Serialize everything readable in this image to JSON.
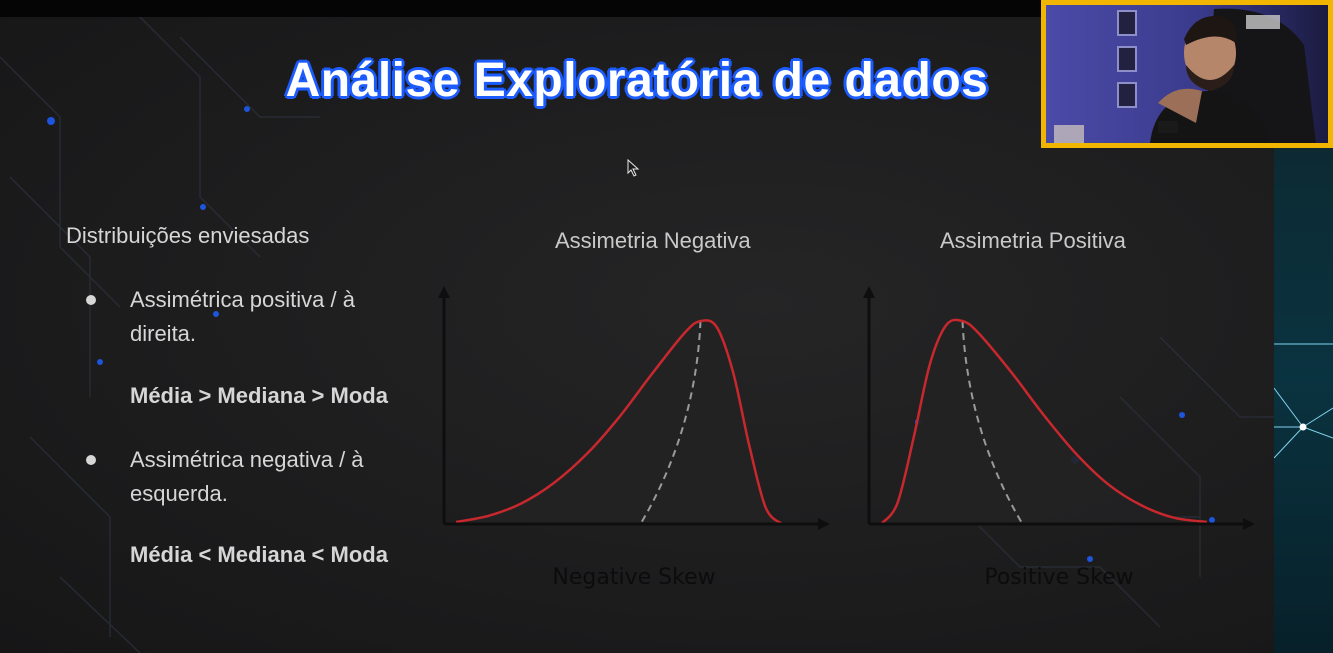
{
  "slide": {
    "title": "Análise Exploratória de dados",
    "section_heading": "Distribuições enviesadas",
    "bullets": [
      {
        "text_line1": "Assimétrica positiva / à",
        "text_line2": "direita.",
        "relation": "Média > Mediana > Moda"
      },
      {
        "text_line1": "Assimétrica negativa / à",
        "text_line2": "esquerda.",
        "relation": "Média < Mediana < Moda"
      }
    ]
  },
  "chart_data": [
    {
      "type": "line",
      "title": "Assimetria Negativa",
      "xlabel": "Negative Skew",
      "ylabel": "",
      "x": [
        0,
        0.1,
        0.2,
        0.3,
        0.4,
        0.5,
        0.6,
        0.7,
        0.75,
        0.8,
        0.85,
        0.9,
        0.95,
        1.0
      ],
      "series": [
        {
          "values": [
            0.01,
            0.04,
            0.1,
            0.2,
            0.34,
            0.52,
            0.73,
            0.93,
            0.99,
            0.96,
            0.74,
            0.38,
            0.08,
            0.0
          ]
        }
      ],
      "colors": {
        "curve": "#c8282d",
        "mode_line": "#9a9a9a",
        "axis": "#0e0e0e"
      }
    },
    {
      "type": "line",
      "title": "Assimetria Positiva",
      "xlabel": "Positive Skew",
      "ylabel": "",
      "x": [
        0,
        0.05,
        0.1,
        0.15,
        0.2,
        0.25,
        0.3,
        0.4,
        0.5,
        0.6,
        0.7,
        0.8,
        0.9,
        1.0
      ],
      "series": [
        {
          "values": [
            0.0,
            0.1,
            0.42,
            0.78,
            0.97,
            0.99,
            0.93,
            0.74,
            0.53,
            0.34,
            0.19,
            0.09,
            0.03,
            0.01
          ]
        }
      ],
      "colors": {
        "curve": "#c8282d",
        "mode_line": "#9a9a9a",
        "axis": "#0e0e0e"
      }
    }
  ],
  "webcam": {
    "frame_color": "#f2b600"
  }
}
